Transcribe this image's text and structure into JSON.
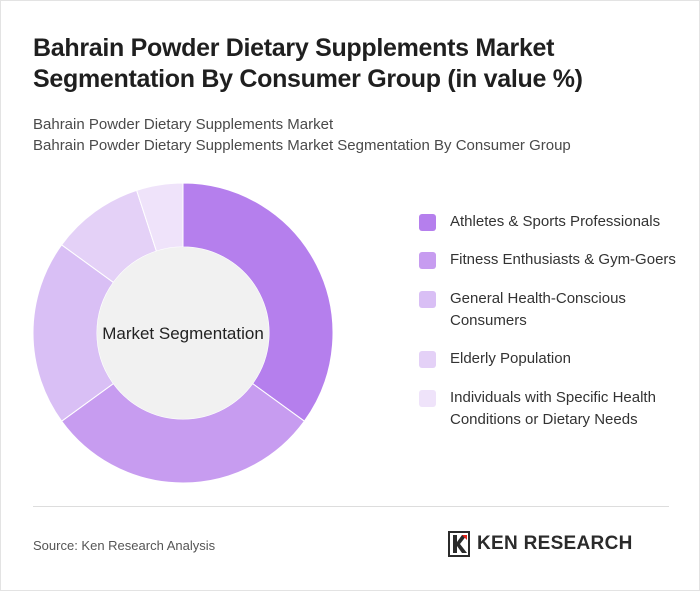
{
  "title": "Bahrain Powder Dietary Supplements Market Segmentation By Consumer Group (in value %)",
  "subtitle_lines": [
    "Bahrain Powder Dietary Supplements Market",
    "Bahrain Powder Dietary Supplements Market Segmentation By Consumer Group"
  ],
  "chart_data": {
    "type": "pie",
    "variant": "donut",
    "center_label": "Market Segmentation",
    "legend_position": "right",
    "categories": [
      "Athletes & Sports Professionals",
      "Fitness Enthusiasts & Gym-Goers",
      "General Health-Conscious Consumers",
      "Elderly Population",
      "Individuals with Specific Health Conditions or Dietary Needs"
    ],
    "values": [
      35,
      30,
      20,
      10,
      5
    ],
    "colors": [
      "#b57fed",
      "#c79cf0",
      "#d9bff5",
      "#e4d1f7",
      "#efe3fa"
    ]
  },
  "legend": {
    "items": [
      {
        "label": "Athletes & Sports Professionals",
        "color": "#b57fed"
      },
      {
        "label": "Fitness Enthusiasts & Gym-Goers",
        "color": "#c79cf0"
      },
      {
        "label": "General Health-Conscious Consumers",
        "color": "#d9bff5"
      },
      {
        "label": "Elderly Population",
        "color": "#e4d1f7"
      },
      {
        "label": "Individuals with Specific Health Conditions or Dietary Needs",
        "color": "#efe3fa"
      }
    ]
  },
  "footer": {
    "source": "Source: Ken Research Analysis",
    "logo_text": "KEN RESEARCH",
    "logo_icon": "ken-research-logo-icon"
  }
}
